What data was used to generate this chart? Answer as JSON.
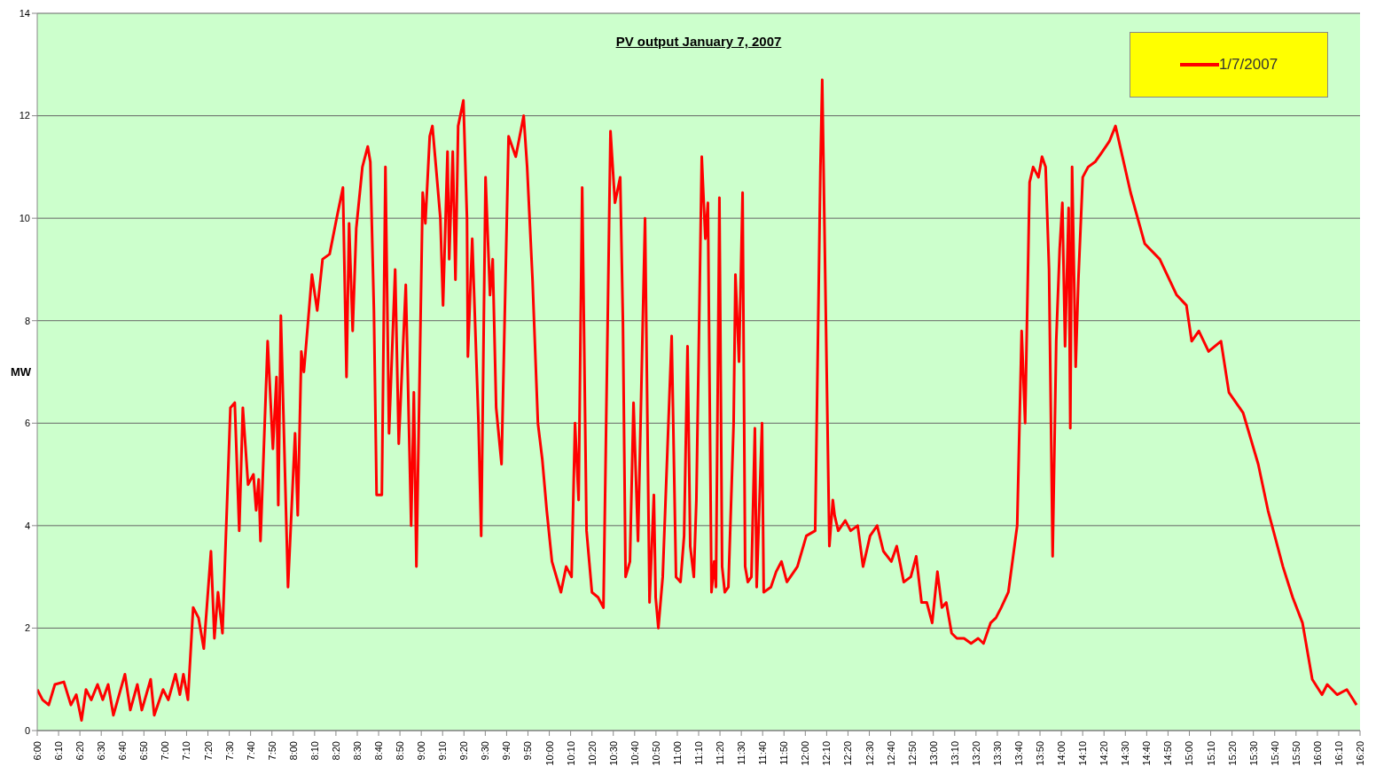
{
  "chart_data": {
    "type": "line",
    "title": "PV output January 7, 2007",
    "ylabel": "MW",
    "xlim": [
      6,
      16.3333
    ],
    "ylim": [
      0,
      14
    ],
    "yticks": [
      0,
      2,
      4,
      6,
      8,
      10,
      12,
      14
    ],
    "xticks": [
      {
        "value": 6,
        "label": "6:00"
      },
      {
        "value": 6.1667,
        "label": "6:10"
      },
      {
        "value": 6.3333,
        "label": "6:20"
      },
      {
        "value": 6.5,
        "label": "6:30"
      },
      {
        "value": 6.6667,
        "label": "6:40"
      },
      {
        "value": 6.8333,
        "label": "6:50"
      },
      {
        "value": 7,
        "label": "7:00"
      },
      {
        "value": 7.1667,
        "label": "7:10"
      },
      {
        "value": 7.3333,
        "label": "7:20"
      },
      {
        "value": 7.5,
        "label": "7:30"
      },
      {
        "value": 7.6667,
        "label": "7:40"
      },
      {
        "value": 7.8333,
        "label": "7:50"
      },
      {
        "value": 8,
        "label": "8:00"
      },
      {
        "value": 8.1667,
        "label": "8:10"
      },
      {
        "value": 8.3333,
        "label": "8:20"
      },
      {
        "value": 8.5,
        "label": "8:30"
      },
      {
        "value": 8.6667,
        "label": "8:40"
      },
      {
        "value": 8.8333,
        "label": "8:50"
      },
      {
        "value": 9,
        "label": "9:00"
      },
      {
        "value": 9.1667,
        "label": "9:10"
      },
      {
        "value": 9.3333,
        "label": "9:20"
      },
      {
        "value": 9.5,
        "label": "9:30"
      },
      {
        "value": 9.6667,
        "label": "9:40"
      },
      {
        "value": 9.8333,
        "label": "9:50"
      },
      {
        "value": 10,
        "label": "10:00"
      },
      {
        "value": 10.1667,
        "label": "10:10"
      },
      {
        "value": 10.3333,
        "label": "10:20"
      },
      {
        "value": 10.5,
        "label": "10:30"
      },
      {
        "value": 10.6667,
        "label": "10:40"
      },
      {
        "value": 10.8333,
        "label": "10:50"
      },
      {
        "value": 11,
        "label": "11:00"
      },
      {
        "value": 11.1667,
        "label": "11:10"
      },
      {
        "value": 11.3333,
        "label": "11:20"
      },
      {
        "value": 11.5,
        "label": "11:30"
      },
      {
        "value": 11.6667,
        "label": "11:40"
      },
      {
        "value": 11.8333,
        "label": "11:50"
      },
      {
        "value": 12,
        "label": "12:00"
      },
      {
        "value": 12.1667,
        "label": "12:10"
      },
      {
        "value": 12.3333,
        "label": "12:20"
      },
      {
        "value": 12.5,
        "label": "12:30"
      },
      {
        "value": 12.6667,
        "label": "12:40"
      },
      {
        "value": 12.8333,
        "label": "12:50"
      },
      {
        "value": 13,
        "label": "13:00"
      },
      {
        "value": 13.1667,
        "label": "13:10"
      },
      {
        "value": 13.3333,
        "label": "13:20"
      },
      {
        "value": 13.5,
        "label": "13:30"
      },
      {
        "value": 13.6667,
        "label": "13:40"
      },
      {
        "value": 13.8333,
        "label": "13:50"
      },
      {
        "value": 14,
        "label": "14:00"
      },
      {
        "value": 14.1667,
        "label": "14:10"
      },
      {
        "value": 14.3333,
        "label": "14:20"
      },
      {
        "value": 14.5,
        "label": "14:30"
      },
      {
        "value": 14.6667,
        "label": "14:40"
      },
      {
        "value": 14.8333,
        "label": "14:50"
      },
      {
        "value": 15,
        "label": "15:00"
      },
      {
        "value": 15.1667,
        "label": "15:10"
      },
      {
        "value": 15.3333,
        "label": "15:20"
      },
      {
        "value": 15.5,
        "label": "15:30"
      },
      {
        "value": 15.6667,
        "label": "15:40"
      },
      {
        "value": 15.8333,
        "label": "15:50"
      },
      {
        "value": 16,
        "label": "16:00"
      },
      {
        "value": 16.1667,
        "label": "16:10"
      },
      {
        "value": 16.3333,
        "label": "16:20"
      }
    ],
    "x": [
      6.0,
      6.042,
      6.09,
      6.138,
      6.208,
      6.263,
      6.305,
      6.346,
      6.381,
      6.422,
      6.471,
      6.512,
      6.554,
      6.595,
      6.685,
      6.727,
      6.782,
      6.817,
      6.886,
      6.914,
      6.983,
      7.024,
      7.08,
      7.114,
      7.142,
      7.177,
      7.218,
      7.26,
      7.301,
      7.357,
      7.384,
      7.412,
      7.447,
      7.509,
      7.543,
      7.578,
      7.606,
      7.647,
      7.689,
      7.71,
      7.73,
      7.744,
      7.8,
      7.841,
      7.869,
      7.883,
      7.903,
      7.959,
      8.014,
      8.035,
      8.063,
      8.083,
      8.146,
      8.187,
      8.229,
      8.284,
      8.339,
      8.388,
      8.416,
      8.436,
      8.464,
      8.492,
      8.54,
      8.582,
      8.602,
      8.63,
      8.651,
      8.692,
      8.72,
      8.748,
      8.796,
      8.824,
      8.879,
      8.921,
      8.942,
      8.962,
      9.011,
      9.032,
      9.066,
      9.087,
      9.115,
      9.149,
      9.17,
      9.205,
      9.218,
      9.246,
      9.267,
      9.288,
      9.329,
      9.357,
      9.364,
      9.398,
      9.447,
      9.468,
      9.502,
      9.537,
      9.558,
      9.585,
      9.627,
      9.682,
      9.738,
      9.8,
      9.827,
      9.869,
      9.911,
      9.945,
      9.98,
      10.021,
      10.091,
      10.132,
      10.174,
      10.201,
      10.229,
      10.257,
      10.291,
      10.333,
      10.381,
      10.423,
      10.478,
      10.513,
      10.554,
      10.575,
      10.596,
      10.63,
      10.658,
      10.693,
      10.748,
      10.783,
      10.817,
      10.831,
      10.852,
      10.886,
      10.956,
      10.99,
      11.025,
      11.053,
      11.08,
      11.101,
      11.129,
      11.149,
      11.191,
      11.219,
      11.239,
      11.267,
      11.288,
      11.302,
      11.329,
      11.35,
      11.371,
      11.399,
      11.44,
      11.454,
      11.482,
      11.51,
      11.53,
      11.551,
      11.579,
      11.606,
      11.62,
      11.662,
      11.675,
      11.731,
      11.772,
      11.814,
      11.856,
      11.911,
      11.938,
      12.008,
      12.077,
      12.118,
      12.132,
      12.167,
      12.188,
      12.215,
      12.229,
      12.257,
      12.312,
      12.354,
      12.409,
      12.451,
      12.506,
      12.561,
      12.61,
      12.672,
      12.714,
      12.769,
      12.824,
      12.866,
      12.908,
      12.949,
      12.991,
      13.032,
      13.067,
      13.101,
      13.143,
      13.184,
      13.24,
      13.295,
      13.35,
      13.392,
      13.447,
      13.489,
      13.53,
      13.586,
      13.655,
      13.69,
      13.717,
      13.752,
      13.78,
      13.821,
      13.849,
      13.877,
      13.904,
      13.932,
      13.96,
      13.987,
      14.008,
      14.029,
      14.057,
      14.07,
      14.084,
      14.112,
      14.133,
      14.167,
      14.209,
      14.264,
      14.32,
      14.375,
      14.423,
      14.541,
      14.652,
      14.769,
      14.901,
      14.977,
      15.018,
      15.074,
      15.15,
      15.247,
      15.309,
      15.42,
      15.538,
      15.614,
      15.731,
      15.807,
      15.884,
      15.96,
      16.036,
      16.077,
      16.154,
      16.23,
      16.306
    ],
    "series": [
      {
        "name": "1/7/2007",
        "color": "#ff0000",
        "values": [
          0.8,
          0.6,
          0.5,
          0.9,
          0.95,
          0.5,
          0.7,
          0.2,
          0.8,
          0.6,
          0.9,
          0.6,
          0.9,
          0.3,
          1.1,
          0.4,
          0.9,
          0.4,
          1.0,
          0.3,
          0.8,
          0.6,
          1.1,
          0.7,
          1.1,
          0.6,
          2.4,
          2.2,
          1.6,
          3.5,
          1.8,
          2.7,
          1.9,
          6.3,
          6.4,
          3.9,
          6.3,
          4.8,
          5.0,
          4.3,
          4.9,
          3.7,
          7.6,
          5.5,
          6.9,
          4.4,
          8.1,
          2.8,
          5.8,
          4.2,
          7.4,
          7.0,
          8.9,
          8.2,
          9.2,
          9.3,
          10.0,
          10.6,
          6.9,
          9.9,
          7.8,
          9.8,
          11.0,
          11.4,
          11.1,
          8.2,
          4.6,
          4.6,
          11.0,
          5.8,
          9.0,
          5.6,
          8.7,
          4.0,
          6.6,
          3.2,
          10.5,
          9.9,
          11.6,
          11.8,
          11.0,
          10.0,
          8.3,
          11.3,
          9.2,
          11.3,
          8.8,
          11.8,
          12.3,
          10.0,
          7.3,
          9.6,
          6.0,
          3.8,
          10.8,
          8.5,
          9.2,
          6.3,
          5.2,
          11.6,
          11.2,
          12.0,
          11.0,
          8.8,
          6.0,
          5.3,
          4.3,
          3.3,
          2.7,
          3.2,
          3.0,
          6.0,
          4.5,
          10.6,
          3.9,
          2.7,
          2.6,
          2.4,
          11.7,
          10.3,
          10.8,
          8.0,
          3.0,
          3.3,
          6.4,
          3.7,
          10.0,
          2.5,
          4.6,
          2.6,
          2.0,
          3.0,
          7.7,
          3.0,
          2.9,
          3.8,
          7.5,
          3.6,
          3.0,
          4.5,
          11.2,
          9.6,
          10.3,
          2.7,
          3.3,
          2.8,
          10.4,
          3.2,
          2.7,
          2.8,
          6.0,
          8.9,
          7.2,
          10.5,
          3.2,
          2.9,
          3.0,
          5.9,
          2.8,
          6.0,
          2.7,
          2.8,
          3.1,
          3.3,
          2.9,
          3.1,
          3.2,
          3.8,
          3.9,
          11.0,
          12.7,
          7.0,
          3.6,
          4.5,
          4.2,
          3.9,
          4.1,
          3.9,
          4.0,
          3.2,
          3.8,
          4.0,
          3.5,
          3.3,
          3.6,
          2.9,
          3.0,
          3.4,
          2.5,
          2.5,
          2.1,
          3.1,
          2.4,
          2.5,
          1.9,
          1.8,
          1.8,
          1.7,
          1.8,
          1.7,
          2.1,
          2.2,
          2.4,
          2.7,
          4.0,
          7.8,
          6.0,
          10.7,
          11.0,
          10.8,
          11.2,
          11.0,
          9.0,
          3.4,
          7.6,
          9.4,
          10.3,
          7.5,
          10.2,
          5.9,
          11.0,
          7.1,
          8.8,
          10.8,
          11.0,
          11.1,
          11.3,
          11.5,
          11.8,
          10.5,
          9.5,
          9.2,
          8.5,
          8.3,
          7.6,
          7.8,
          7.4,
          7.6,
          6.6,
          6.2,
          5.2,
          4.3,
          3.2,
          2.6,
          2.1,
          1.0,
          0.7,
          0.9,
          0.7,
          0.8,
          0.5
        ]
      }
    ],
    "grid": "y",
    "legend": "top right",
    "marker": "none",
    "line_style": "solid"
  }
}
